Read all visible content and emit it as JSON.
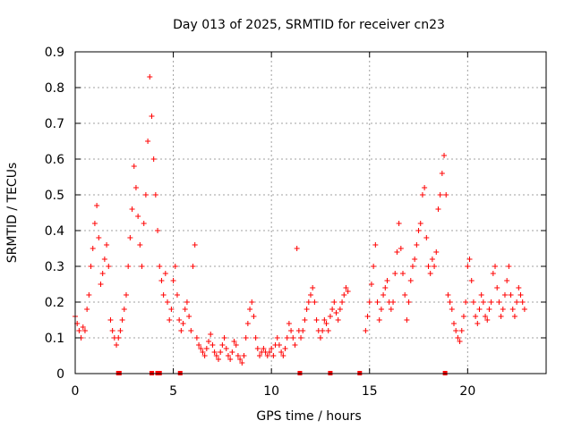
{
  "chart_data": {
    "type": "scatter",
    "title": "Day 013 of 2025, SRMTID for receiver cn23",
    "xlabel": "GPS time / hours",
    "ylabel": "SRMTID / TECUs",
    "xlim": [
      0,
      24
    ],
    "ylim": [
      0,
      0.9
    ],
    "xticks": [
      0,
      5,
      10,
      15,
      20
    ],
    "xtick_labels": [
      "0",
      "5",
      "10",
      "15",
      "20"
    ],
    "yticks": [
      0,
      0.1,
      0.2,
      0.3,
      0.4,
      0.5,
      0.6,
      0.7,
      0.8,
      0.9
    ],
    "ytick_labels": [
      "0",
      "0.1",
      "0.2",
      "0.3",
      "0.4",
      "0.5",
      "0.6",
      "0.7",
      "0.8",
      "0.9"
    ],
    "grid": true,
    "marker": "+",
    "color": "#ff0000",
    "series": [
      {
        "name": "SRMTID",
        "points": [
          [
            0.0,
            0.16
          ],
          [
            0.1,
            0.14
          ],
          [
            0.2,
            0.12
          ],
          [
            0.3,
            0.1
          ],
          [
            0.4,
            0.13
          ],
          [
            0.5,
            0.12
          ],
          [
            0.6,
            0.18
          ],
          [
            0.7,
            0.22
          ],
          [
            0.8,
            0.3
          ],
          [
            0.9,
            0.35
          ],
          [
            1.0,
            0.42
          ],
          [
            1.1,
            0.47
          ],
          [
            1.2,
            0.38
          ],
          [
            1.3,
            0.25
          ],
          [
            1.4,
            0.28
          ],
          [
            1.5,
            0.32
          ],
          [
            1.6,
            0.36
          ],
          [
            1.7,
            0.3
          ],
          [
            1.8,
            0.15
          ],
          [
            1.9,
            0.12
          ],
          [
            2.0,
            0.1
          ],
          [
            2.1,
            0.08
          ],
          [
            2.2,
            0.1
          ],
          [
            2.3,
            0.12
          ],
          [
            2.4,
            0.15
          ],
          [
            2.5,
            0.18
          ],
          [
            2.6,
            0.22
          ],
          [
            2.7,
            0.3
          ],
          [
            2.8,
            0.38
          ],
          [
            2.9,
            0.46
          ],
          [
            3.0,
            0.58
          ],
          [
            3.1,
            0.52
          ],
          [
            3.2,
            0.44
          ],
          [
            3.3,
            0.36
          ],
          [
            3.4,
            0.3
          ],
          [
            3.5,
            0.42
          ],
          [
            3.6,
            0.5
          ],
          [
            3.7,
            0.65
          ],
          [
            3.8,
            0.83
          ],
          [
            3.9,
            0.72
          ],
          [
            4.0,
            0.6
          ],
          [
            4.1,
            0.5
          ],
          [
            4.2,
            0.4
          ],
          [
            4.3,
            0.3
          ],
          [
            4.4,
            0.26
          ],
          [
            4.5,
            0.22
          ],
          [
            4.6,
            0.28
          ],
          [
            4.7,
            0.2
          ],
          [
            4.8,
            0.15
          ],
          [
            4.9,
            0.18
          ],
          [
            5.0,
            0.26
          ],
          [
            5.1,
            0.3
          ],
          [
            5.2,
            0.22
          ],
          [
            5.3,
            0.15
          ],
          [
            5.4,
            0.12
          ],
          [
            5.5,
            0.14
          ],
          [
            5.6,
            0.18
          ],
          [
            5.7,
            0.2
          ],
          [
            5.8,
            0.16
          ],
          [
            5.9,
            0.12
          ],
          [
            6.0,
            0.3
          ],
          [
            6.1,
            0.36
          ],
          [
            6.2,
            0.1
          ],
          [
            6.3,
            0.08
          ],
          [
            6.4,
            0.07
          ],
          [
            6.5,
            0.06
          ],
          [
            6.6,
            0.05
          ],
          [
            6.7,
            0.07
          ],
          [
            6.8,
            0.09
          ],
          [
            6.9,
            0.11
          ],
          [
            7.0,
            0.08
          ],
          [
            7.1,
            0.06
          ],
          [
            7.2,
            0.05
          ],
          [
            7.3,
            0.04
          ],
          [
            7.4,
            0.06
          ],
          [
            7.5,
            0.08
          ],
          [
            7.6,
            0.1
          ],
          [
            7.7,
            0.07
          ],
          [
            7.8,
            0.05
          ],
          [
            7.9,
            0.04
          ],
          [
            8.0,
            0.06
          ],
          [
            8.1,
            0.09
          ],
          [
            8.2,
            0.08
          ],
          [
            8.3,
            0.05
          ],
          [
            8.4,
            0.04
          ],
          [
            8.5,
            0.03
          ],
          [
            8.6,
            0.05
          ],
          [
            8.7,
            0.1
          ],
          [
            8.8,
            0.14
          ],
          [
            8.9,
            0.18
          ],
          [
            9.0,
            0.2
          ],
          [
            9.1,
            0.16
          ],
          [
            9.2,
            0.1
          ],
          [
            9.3,
            0.07
          ],
          [
            9.4,
            0.05
          ],
          [
            9.5,
            0.06
          ],
          [
            9.6,
            0.07
          ],
          [
            9.7,
            0.06
          ],
          [
            9.8,
            0.05
          ],
          [
            9.9,
            0.06
          ],
          [
            10.0,
            0.07
          ],
          [
            10.1,
            0.05
          ],
          [
            10.2,
            0.08
          ],
          [
            10.3,
            0.1
          ],
          [
            10.4,
            0.08
          ],
          [
            10.5,
            0.06
          ],
          [
            10.6,
            0.05
          ],
          [
            10.7,
            0.07
          ],
          [
            10.8,
            0.1
          ],
          [
            10.9,
            0.14
          ],
          [
            11.0,
            0.12
          ],
          [
            11.1,
            0.1
          ],
          [
            11.2,
            0.08
          ],
          [
            11.3,
            0.35
          ],
          [
            11.4,
            0.12
          ],
          [
            11.5,
            0.1
          ],
          [
            11.6,
            0.12
          ],
          [
            11.7,
            0.15
          ],
          [
            11.8,
            0.18
          ],
          [
            11.9,
            0.2
          ],
          [
            12.0,
            0.22
          ],
          [
            12.1,
            0.24
          ],
          [
            12.2,
            0.2
          ],
          [
            12.3,
            0.15
          ],
          [
            12.4,
            0.12
          ],
          [
            12.5,
            0.1
          ],
          [
            12.6,
            0.12
          ],
          [
            12.7,
            0.15
          ],
          [
            12.8,
            0.14
          ],
          [
            12.9,
            0.12
          ],
          [
            13.0,
            0.16
          ],
          [
            13.1,
            0.18
          ],
          [
            13.2,
            0.2
          ],
          [
            13.3,
            0.17
          ],
          [
            13.4,
            0.15
          ],
          [
            13.5,
            0.18
          ],
          [
            13.6,
            0.2
          ],
          [
            13.7,
            0.22
          ],
          [
            13.8,
            0.24
          ],
          [
            13.9,
            0.23
          ],
          [
            14.8,
            0.12
          ],
          [
            14.9,
            0.16
          ],
          [
            15.0,
            0.2
          ],
          [
            15.1,
            0.25
          ],
          [
            15.2,
            0.3
          ],
          [
            15.3,
            0.36
          ],
          [
            15.4,
            0.2
          ],
          [
            15.5,
            0.15
          ],
          [
            15.6,
            0.18
          ],
          [
            15.7,
            0.22
          ],
          [
            15.8,
            0.24
          ],
          [
            15.9,
            0.26
          ],
          [
            16.0,
            0.2
          ],
          [
            16.1,
            0.18
          ],
          [
            16.2,
            0.2
          ],
          [
            16.3,
            0.28
          ],
          [
            16.4,
            0.34
          ],
          [
            16.5,
            0.42
          ],
          [
            16.6,
            0.35
          ],
          [
            16.7,
            0.28
          ],
          [
            16.8,
            0.22
          ],
          [
            16.9,
            0.15
          ],
          [
            17.0,
            0.2
          ],
          [
            17.1,
            0.26
          ],
          [
            17.2,
            0.3
          ],
          [
            17.3,
            0.32
          ],
          [
            17.4,
            0.36
          ],
          [
            17.5,
            0.4
          ],
          [
            17.6,
            0.42
          ],
          [
            17.7,
            0.5
          ],
          [
            17.8,
            0.52
          ],
          [
            17.9,
            0.38
          ],
          [
            18.0,
            0.3
          ],
          [
            18.1,
            0.28
          ],
          [
            18.2,
            0.32
          ],
          [
            18.3,
            0.3
          ],
          [
            18.4,
            0.34
          ],
          [
            18.5,
            0.46
          ],
          [
            18.6,
            0.5
          ],
          [
            18.7,
            0.56
          ],
          [
            18.8,
            0.61
          ],
          [
            18.9,
            0.5
          ],
          [
            19.0,
            0.22
          ],
          [
            19.1,
            0.2
          ],
          [
            19.2,
            0.18
          ],
          [
            19.3,
            0.14
          ],
          [
            19.4,
            0.12
          ],
          [
            19.5,
            0.1
          ],
          [
            19.6,
            0.09
          ],
          [
            19.7,
            0.12
          ],
          [
            19.8,
            0.16
          ],
          [
            19.9,
            0.2
          ],
          [
            20.0,
            0.3
          ],
          [
            20.1,
            0.32
          ],
          [
            20.2,
            0.26
          ],
          [
            20.3,
            0.2
          ],
          [
            20.4,
            0.16
          ],
          [
            20.5,
            0.14
          ],
          [
            20.6,
            0.18
          ],
          [
            20.7,
            0.22
          ],
          [
            20.8,
            0.2
          ],
          [
            20.9,
            0.16
          ],
          [
            21.0,
            0.15
          ],
          [
            21.1,
            0.18
          ],
          [
            21.2,
            0.2
          ],
          [
            21.3,
            0.28
          ],
          [
            21.4,
            0.3
          ],
          [
            21.5,
            0.24
          ],
          [
            21.6,
            0.2
          ],
          [
            21.7,
            0.16
          ],
          [
            21.8,
            0.18
          ],
          [
            21.9,
            0.22
          ],
          [
            22.0,
            0.26
          ],
          [
            22.1,
            0.3
          ],
          [
            22.2,
            0.22
          ],
          [
            22.3,
            0.18
          ],
          [
            22.4,
            0.16
          ],
          [
            22.5,
            0.2
          ],
          [
            22.6,
            0.24
          ],
          [
            22.7,
            0.22
          ],
          [
            22.8,
            0.2
          ],
          [
            22.9,
            0.18
          ]
        ]
      }
    ],
    "gap_markers_x": [
      2.2,
      2.25,
      3.9,
      4.2,
      4.3,
      5.35,
      11.45,
      13.0,
      14.5,
      18.85
    ]
  }
}
